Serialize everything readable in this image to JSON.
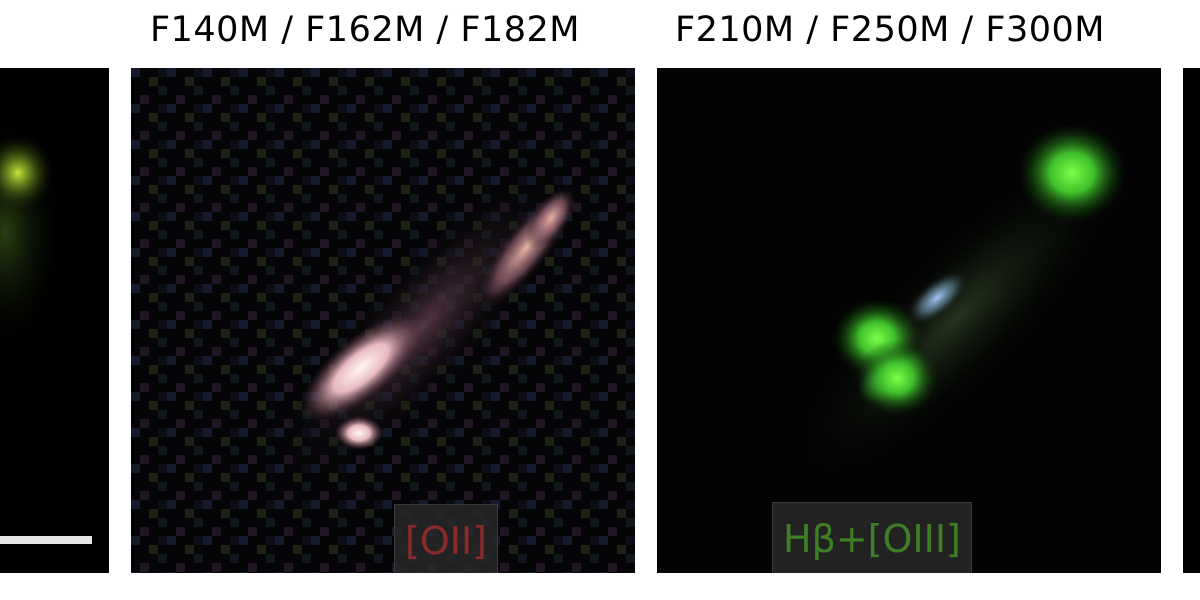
{
  "panels": [
    {
      "title": "",
      "label": ""
    },
    {
      "title": "F140M / F162M / F182M",
      "label": "[OII]",
      "label_color": "#8b2a2a"
    },
    {
      "title": "F210M / F250M / F300M",
      "label": "Hβ+[OIII]",
      "label_color": "#3e7f25"
    },
    {
      "title": "",
      "label": ""
    }
  ],
  "colors": {
    "background": "#ffffff",
    "panel": "#000000",
    "scale_bar": "#e6e6e6"
  }
}
